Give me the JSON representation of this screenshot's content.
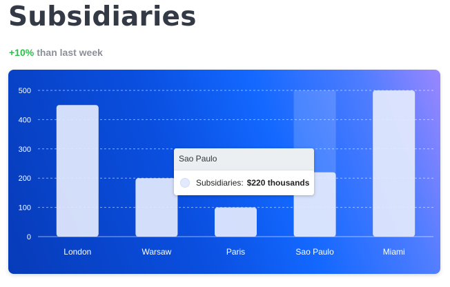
{
  "header": {
    "title": "Subsidiaries",
    "change_pct": "+10%",
    "change_text": "than last week"
  },
  "chart_data": {
    "type": "bar",
    "categories": [
      "London",
      "Warsaw",
      "Paris",
      "Sao Paulo",
      "Miami"
    ],
    "series": [
      {
        "name": "Subsidiaries",
        "values": [
          450,
          200,
          100,
          220,
          500
        ]
      }
    ],
    "ylim": [
      0,
      500
    ],
    "yticks": [
      0,
      100,
      200,
      300,
      400,
      500
    ],
    "grid": true,
    "highlighted_index": 3
  },
  "tooltip": {
    "category": "Sao Paulo",
    "series_label": "Subsidiaries:",
    "value_label": "$220 thousands"
  },
  "colors": {
    "bar": "#e3eafd",
    "positive": "#2dbf4a",
    "text_axis": "#ffffff"
  }
}
